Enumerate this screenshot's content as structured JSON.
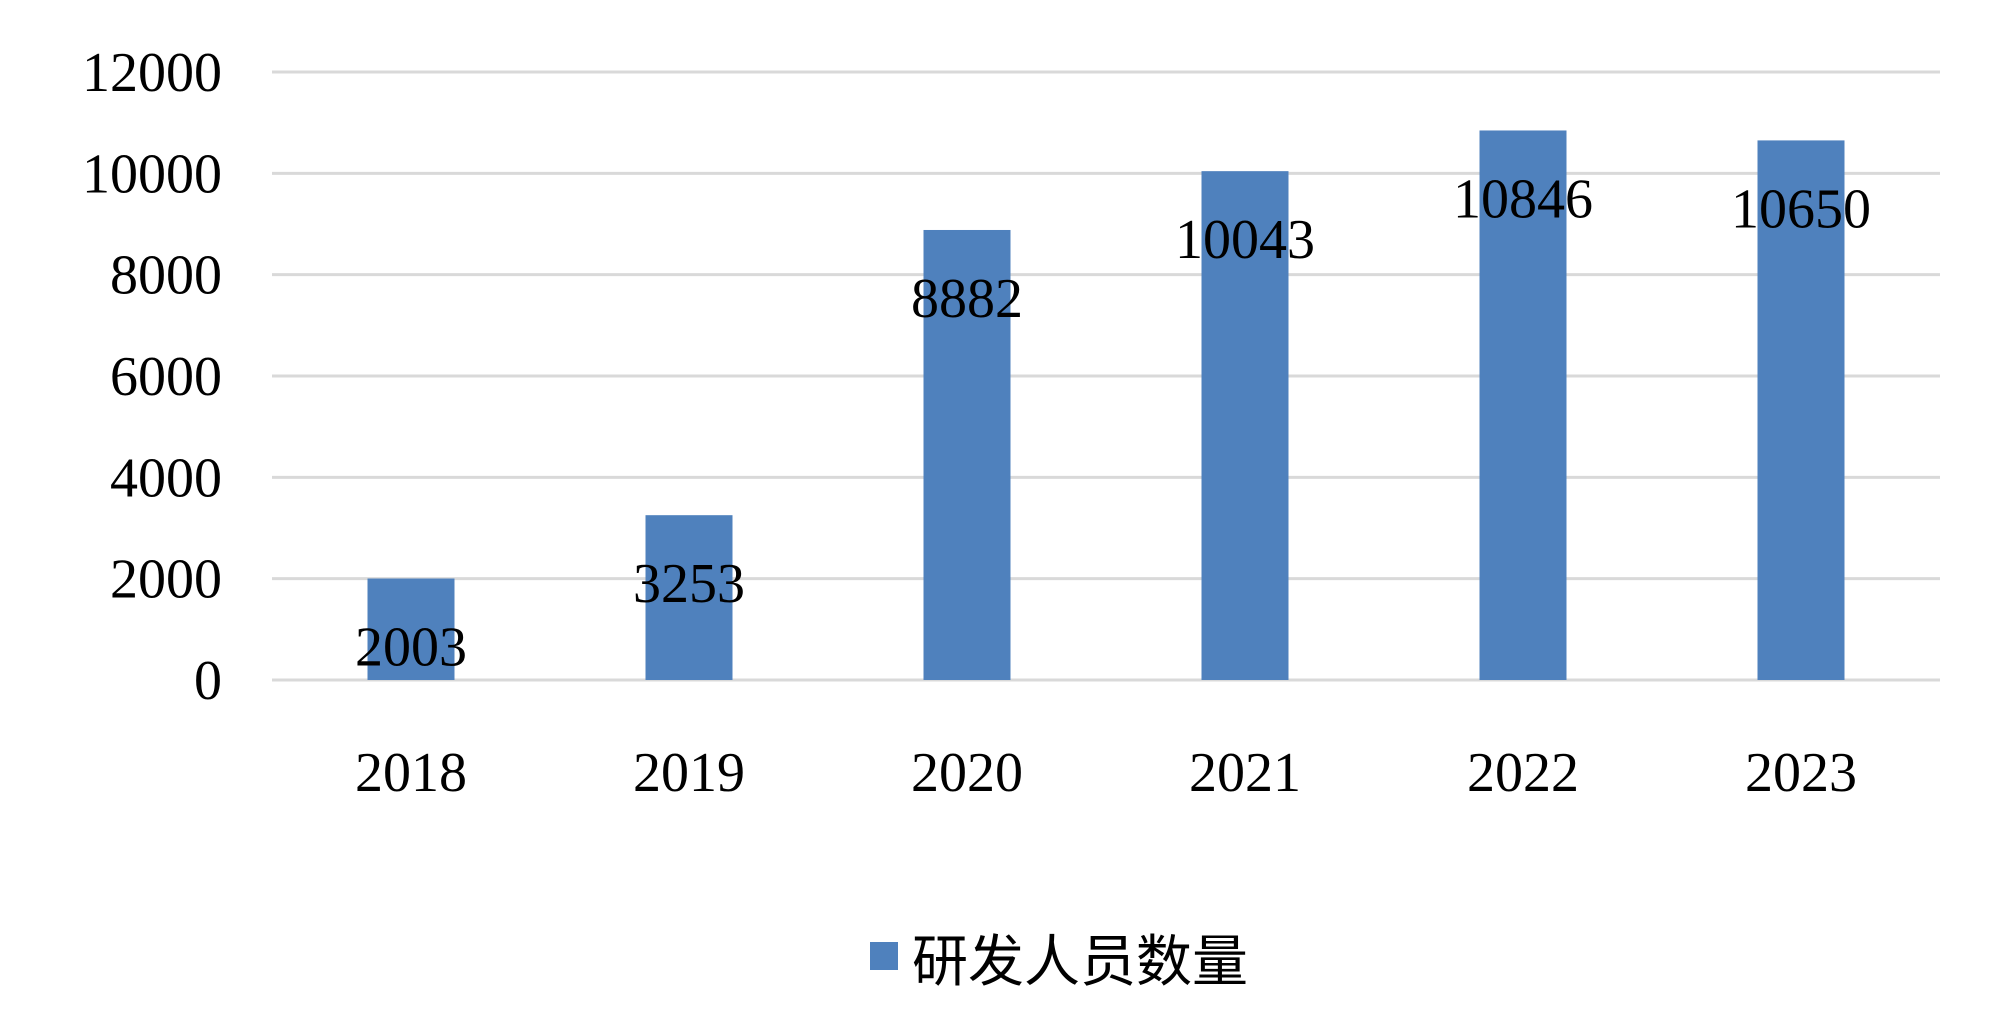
{
  "chart_data": {
    "type": "bar",
    "categories": [
      "2018",
      "2019",
      "2020",
      "2021",
      "2022",
      "2023"
    ],
    "series": [
      {
        "name": "研发人员数量",
        "values": [
          2003,
          3253,
          8882,
          10043,
          10846,
          10650
        ]
      }
    ],
    "data_labels": [
      "2003",
      "3253",
      "8882",
      "10043",
      "10846",
      "10650"
    ],
    "title": "",
    "xlabel": "",
    "ylabel": "",
    "ylim": [
      0,
      12000
    ],
    "yticks": [
      0,
      2000,
      4000,
      6000,
      8000,
      10000,
      12000
    ],
    "ytick_labels": [
      "0",
      "2000",
      "4000",
      "6000",
      "8000",
      "10000",
      "12000"
    ],
    "grid": true,
    "legend_position": "bottom",
    "colors": {
      "bar": "#4f81bd",
      "grid": "#d9d9d9",
      "text": "#000000"
    }
  }
}
